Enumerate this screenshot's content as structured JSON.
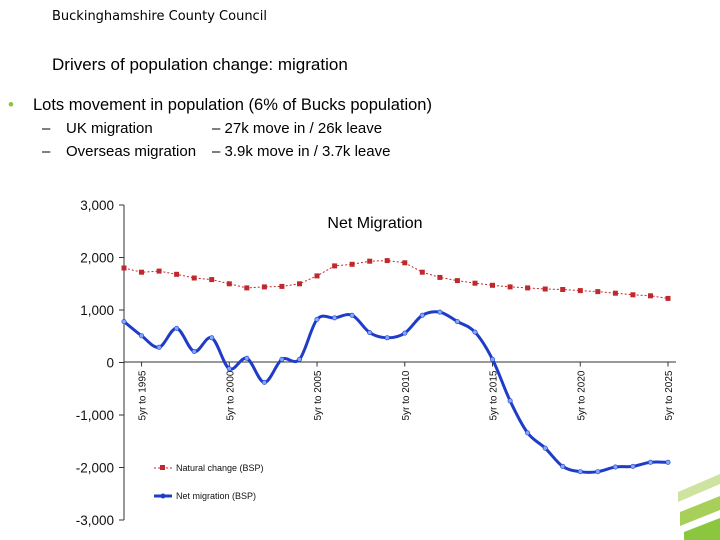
{
  "header": {
    "org": "Buckinghamshire County Council"
  },
  "slide": {
    "title": "Drivers of population change: migration",
    "bullet": "Lots movement in population (6% of Bucks population)",
    "sub_items": [
      {
        "dash": "–",
        "label": "UK migration",
        "detail": "– 27k move in / 26k leave"
      },
      {
        "dash": "–",
        "label": "Overseas migration",
        "detail": "– 3.9k move in / 3.7k leave"
      }
    ]
  },
  "colors": {
    "natural": "#c0282d",
    "net": "#1f3cc8",
    "bullet": "#8cc63f",
    "accent": "#8cc63f"
  },
  "chart_data": {
    "type": "line",
    "title": "Net Migration",
    "ylim": [
      -3000,
      3000
    ],
    "yticks": [
      3000,
      2000,
      1000,
      0,
      -1000,
      -2000,
      -3000
    ],
    "ytick_labels": [
      "3,000",
      "2,000",
      "1,000",
      "0",
      "-1,000",
      "-2,000",
      "-3,000"
    ],
    "xlim": [
      1994,
      2025
    ],
    "xticks": [
      1995,
      2000,
      2005,
      2010,
      2015,
      2020,
      2025
    ],
    "xtick_labels": [
      "5yr to 1995",
      "5yr to 2000",
      "5yr to 2005",
      "5yr to 2010",
      "5yr to 2015",
      "5yr to 2020",
      "5yr to 2025"
    ],
    "legend": {
      "position": "bottom-left-inside"
    },
    "series": [
      {
        "name": "Natural change (BSP)",
        "marker": "square",
        "x": [
          1994,
          1995,
          1996,
          1997,
          1998,
          1999,
          2000,
          2001,
          2002,
          2003,
          2004,
          2005,
          2006,
          2007,
          2008,
          2009,
          2010,
          2011,
          2012,
          2013,
          2014,
          2015,
          2016,
          2017,
          2018,
          2019,
          2020,
          2021,
          2022,
          2023,
          2024,
          2025
        ],
        "values": [
          1800,
          1720,
          1740,
          1680,
          1610,
          1580,
          1500,
          1420,
          1440,
          1450,
          1500,
          1650,
          1840,
          1870,
          1930,
          1940,
          1900,
          1720,
          1620,
          1560,
          1510,
          1470,
          1440,
          1420,
          1400,
          1390,
          1370,
          1350,
          1320,
          1290,
          1270,
          1220
        ]
      },
      {
        "name": "Net migration (BSP)",
        "marker": "circle",
        "x": [
          1994,
          1995,
          1996,
          1997,
          1998,
          1999,
          2000,
          2001,
          2002,
          2003,
          2004,
          2005,
          2006,
          2007,
          2008,
          2009,
          2010,
          2011,
          2012,
          2013,
          2014,
          2015,
          2016,
          2017,
          2018,
          2019,
          2020,
          2021,
          2022,
          2023,
          2024,
          2025
        ],
        "values": [
          780,
          510,
          290,
          650,
          210,
          470,
          -120,
          80,
          -380,
          60,
          60,
          820,
          850,
          900,
          570,
          470,
          560,
          900,
          960,
          780,
          580,
          60,
          -730,
          -1340,
          -1630,
          -1980,
          -2080,
          -2080,
          -1990,
          -1980,
          -1900,
          -1900
        ]
      }
    ]
  }
}
